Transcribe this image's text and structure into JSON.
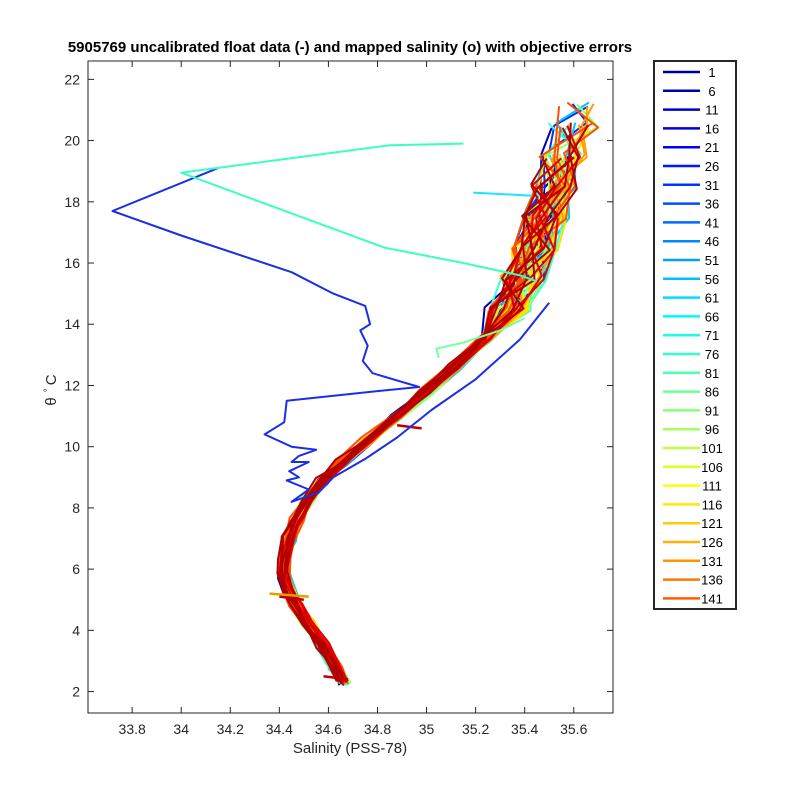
{
  "chart_data": {
    "type": "line",
    "title": "5905769 uncalibrated float data (-) and mapped salinity (o) with objective errors",
    "xlabel": "Salinity (PSS-78)",
    "ylabel_symbol": "θ",
    "ylabel_degree": "°",
    "ylabel_unit": "C",
    "xlim": [
      33.62,
      35.76
    ],
    "ylim": [
      1.3,
      22.6
    ],
    "xticks": [
      33.8,
      34,
      34.2,
      34.4,
      34.6,
      34.8,
      35,
      35.2,
      35.4,
      35.6
    ],
    "yticks": [
      2,
      4,
      6,
      8,
      10,
      12,
      14,
      16,
      18,
      20,
      22
    ],
    "legend_position": "outside-right",
    "grid": false,
    "legend": [
      {
        "label": "1",
        "color": "#00008f"
      },
      {
        "label": "6",
        "color": "#0000a8"
      },
      {
        "label": "11",
        "color": "#0000c4"
      },
      {
        "label": "16",
        "color": "#0000df"
      },
      {
        "label": "21",
        "color": "#0000fb"
      },
      {
        "label": "26",
        "color": "#0016ff"
      },
      {
        "label": "31",
        "color": "#0033ff"
      },
      {
        "label": "36",
        "color": "#004fff"
      },
      {
        "label": "41",
        "color": "#006bff"
      },
      {
        "label": "46",
        "color": "#0088ff"
      },
      {
        "label": "51",
        "color": "#00a4ff"
      },
      {
        "label": "56",
        "color": "#00c0ff"
      },
      {
        "label": "61",
        "color": "#00ddff"
      },
      {
        "label": "66",
        "color": "#00f9ff"
      },
      {
        "label": "71",
        "color": "#16ffe9"
      },
      {
        "label": "76",
        "color": "#33ffcc"
      },
      {
        "label": "81",
        "color": "#4fffb0"
      },
      {
        "label": "86",
        "color": "#6bff94"
      },
      {
        "label": "91",
        "color": "#88ff77"
      },
      {
        "label": "96",
        "color": "#a4ff5b"
      },
      {
        "label": "101",
        "color": "#c0ff3f"
      },
      {
        "label": "106",
        "color": "#ddff22"
      },
      {
        "label": "111",
        "color": "#f9ff06"
      },
      {
        "label": "116",
        "color": "#ffe900"
      },
      {
        "label": "121",
        "color": "#ffcc00"
      },
      {
        "label": "126",
        "color": "#ffb000"
      },
      {
        "label": "131",
        "color": "#ff9400"
      },
      {
        "label": "136",
        "color": "#ff7700"
      },
      {
        "label": "141",
        "color": "#ff5b00"
      }
    ],
    "profile_colors": [
      "#0000b0",
      "#1030e0",
      "#00c8ff",
      "#40ffd0",
      "#a0ff60",
      "#ffe000",
      "#ffa000",
      "#ff5000",
      "#e00000",
      "#b00000"
    ],
    "main_curve": {
      "s": [
        34.66,
        34.63,
        34.58,
        34.52,
        34.47,
        34.44,
        34.42,
        34.42,
        34.44,
        34.47,
        34.52,
        34.58,
        34.66,
        34.76,
        34.88,
        35.0,
        35.12,
        35.24,
        35.34,
        35.4,
        35.44,
        35.48,
        35.52,
        35.56,
        35.6,
        35.62
      ],
      "t": [
        2.3,
        2.8,
        3.5,
        4.2,
        4.8,
        5.3,
        5.8,
        6.4,
        7.0,
        7.6,
        8.3,
        8.9,
        9.5,
        10.2,
        11.0,
        11.8,
        12.6,
        13.5,
        14.5,
        15.5,
        16.5,
        17.5,
        18.5,
        19.5,
        20.5,
        21.2
      ]
    },
    "outlier_profiles": [
      {
        "color": "#1b2ee6",
        "s": [
          34.15,
          33.72,
          34.0,
          34.45,
          34.62,
          34.75,
          34.77,
          34.73,
          34.76,
          34.74,
          34.78,
          34.97,
          34.84,
          34.43,
          34.42,
          34.34,
          34.45,
          34.55,
          34.48,
          34.45,
          34.52,
          34.44,
          34.48,
          34.43,
          34.52,
          34.45,
          34.56,
          34.62,
          34.75,
          34.88,
          35.02,
          35.2,
          35.38,
          35.5
        ],
        "t": [
          19.1,
          17.7,
          16.9,
          15.7,
          15.0,
          14.6,
          14.0,
          13.8,
          13.3,
          12.8,
          12.4,
          11.95,
          11.85,
          11.5,
          10.8,
          10.4,
          10.0,
          9.9,
          9.7,
          9.5,
          9.5,
          9.2,
          9.0,
          8.9,
          8.6,
          8.2,
          8.5,
          9.0,
          9.6,
          10.3,
          11.2,
          12.2,
          13.5,
          14.7
        ]
      },
      {
        "color": "#3affc4",
        "s": [
          35.15,
          34.85,
          34.0,
          34.83,
          35.15,
          35.38,
          35.45
        ],
        "t": [
          19.9,
          19.85,
          18.95,
          16.5,
          16.0,
          15.6,
          15.4
        ]
      },
      {
        "color": "#18e8ff",
        "s": [
          35.19,
          35.43
        ],
        "t": [
          18.3,
          18.2
        ]
      },
      {
        "color": "#7affa0",
        "s": [
          35.05,
          35.04,
          35.15,
          35.3,
          35.4
        ],
        "t": [
          12.9,
          13.2,
          13.4,
          13.8,
          14.2
        ]
      }
    ]
  }
}
